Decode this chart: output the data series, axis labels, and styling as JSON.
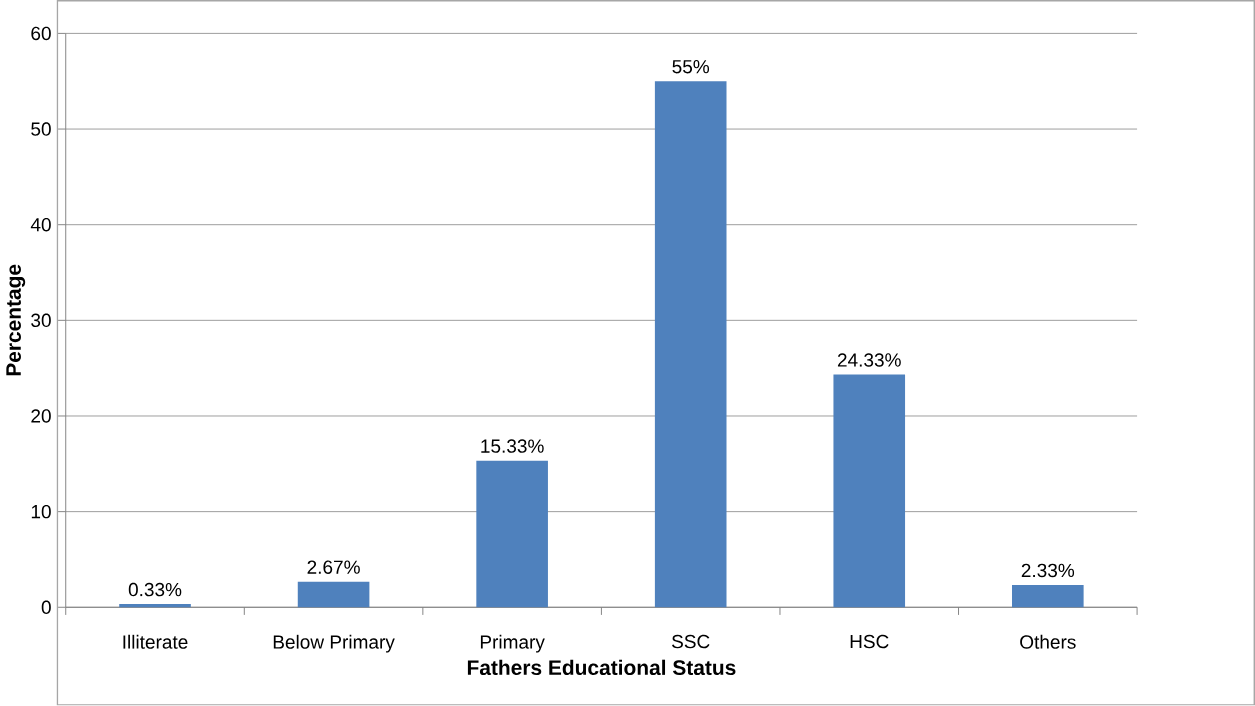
{
  "chart_data": {
    "type": "bar",
    "xlabel": "Fathers Educational Status",
    "ylabel": "Percentage",
    "categories": [
      "Illiterate",
      "Below Primary",
      "Primary",
      "SSC",
      "HSC",
      "Others"
    ],
    "values": [
      0.33,
      2.67,
      15.33,
      55,
      24.33,
      2.33
    ],
    "value_labels": [
      "0.33%",
      "2.67%",
      "15.33%",
      "55%",
      "24.33%",
      "2.33%"
    ],
    "color": "#4f81bd",
    "ylim": [
      0,
      60
    ],
    "yticks": [
      0,
      10,
      20,
      30,
      40,
      50,
      60
    ],
    "grid": "y"
  }
}
